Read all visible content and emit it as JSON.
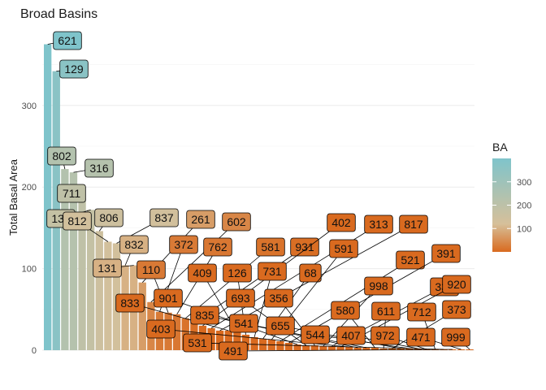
{
  "chart_data": {
    "type": "bar",
    "title": "Broad Basins",
    "xlabel": "",
    "ylabel": "Total Basal Area",
    "ylim": [
      0,
      380
    ],
    "yticks": [
      "0",
      "100",
      "200",
      "300"
    ],
    "grid": "horizontal",
    "legend_position": "right",
    "legend": {
      "title": "BA",
      "ticks": [
        "100",
        "200",
        "300"
      ],
      "colors": [
        "#d96a1f",
        "#d6c09a",
        "#7fc4cb"
      ]
    },
    "bar_labels": [
      "621",
      "129",
      "802",
      "316",
      "711",
      "132",
      "806",
      "812",
      "837",
      "832",
      "131",
      "261",
      "602",
      "372",
      "110",
      "762",
      "581",
      "931",
      "402",
      "313",
      "817",
      "833",
      "409",
      "126",
      "731",
      "68",
      "591",
      "521",
      "391",
      "901",
      "693",
      "356",
      "998",
      "332",
      "920",
      "403",
      "835",
      "541",
      "580",
      "611",
      "373",
      "655",
      "544",
      "407",
      "972",
      "712",
      "531",
      "491",
      "471",
      "999"
    ],
    "values": [
      375,
      342,
      222,
      218,
      186,
      172,
      146,
      133,
      131,
      104,
      104,
      83,
      59,
      47,
      46,
      44,
      39,
      34,
      30,
      27,
      24,
      24,
      22,
      19,
      16,
      14,
      13,
      11,
      9,
      7,
      6,
      6,
      5,
      5,
      4,
      4,
      3,
      3,
      3,
      2,
      2,
      2,
      2,
      2,
      1,
      1,
      1,
      1,
      1,
      1
    ]
  }
}
